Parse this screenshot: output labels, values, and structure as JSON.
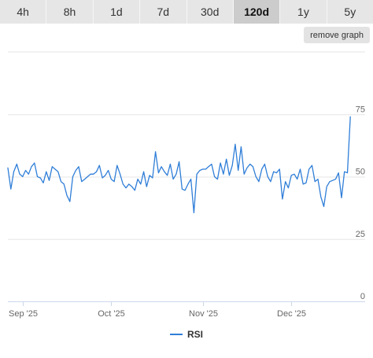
{
  "range_tabs": [
    {
      "label": "4h",
      "active": false
    },
    {
      "label": "8h",
      "active": false
    },
    {
      "label": "1d",
      "active": false
    },
    {
      "label": "7d",
      "active": false
    },
    {
      "label": "30d",
      "active": false
    },
    {
      "label": "120d",
      "active": true
    },
    {
      "label": "1y",
      "active": false
    },
    {
      "label": "5y",
      "active": false
    }
  ],
  "remove_graph_label": "remove graph",
  "colors": {
    "series": "#2f7ed8",
    "grid": "#e6e6e6",
    "axis": "#ccd6eb",
    "text": "#666666"
  },
  "chart_data": {
    "type": "line",
    "title": "",
    "xlabel": "",
    "ylabel": "",
    "ylim": [
      0,
      100
    ],
    "yticks": [
      0,
      25,
      50,
      75
    ],
    "xlim": [
      "2025-08-27",
      "2025-12-26"
    ],
    "xticks": [
      {
        "date": "2025-09-01",
        "label": "Sep '25"
      },
      {
        "date": "2025-10-01",
        "label": "Oct '25"
      },
      {
        "date": "2025-11-01",
        "label": "Nov '25"
      },
      {
        "date": "2025-12-01",
        "label": "Dec '25"
      }
    ],
    "legend": {
      "position": "bottom-center"
    },
    "grid": true,
    "series": [
      {
        "name": "RSI",
        "start_date": "2025-08-27",
        "values": [
          53.5,
          45,
          52,
          55,
          51,
          50,
          52.5,
          51,
          54,
          55.5,
          50,
          49.5,
          47.5,
          52,
          48.5,
          54,
          53,
          52,
          48,
          47,
          42.5,
          40,
          50,
          52.5,
          54,
          48,
          49,
          50,
          51,
          51,
          52,
          54.5,
          49.5,
          50.5,
          52.5,
          49,
          48,
          54.5,
          51,
          47,
          45.5,
          47,
          46,
          44.5,
          49,
          47,
          52,
          46,
          50.5,
          49.5,
          60,
          51.5,
          54,
          52,
          50.5,
          55,
          49,
          51,
          56,
          45,
          44.5,
          47,
          49,
          35.5,
          51,
          52.5,
          53,
          53,
          54,
          55,
          50,
          49,
          55.5,
          51,
          57,
          50.5,
          54.5,
          63,
          52.5,
          62,
          51,
          53.5,
          55,
          54,
          50,
          48,
          53,
          55,
          50,
          48,
          52,
          51.5,
          53,
          41,
          48,
          45.5,
          50.5,
          51,
          49,
          53,
          47,
          47.5,
          53,
          54.5,
          48,
          49,
          42,
          38,
          46,
          48,
          48.5,
          49,
          51.5,
          41.5,
          52,
          51.5,
          74
        ]
      }
    ]
  }
}
